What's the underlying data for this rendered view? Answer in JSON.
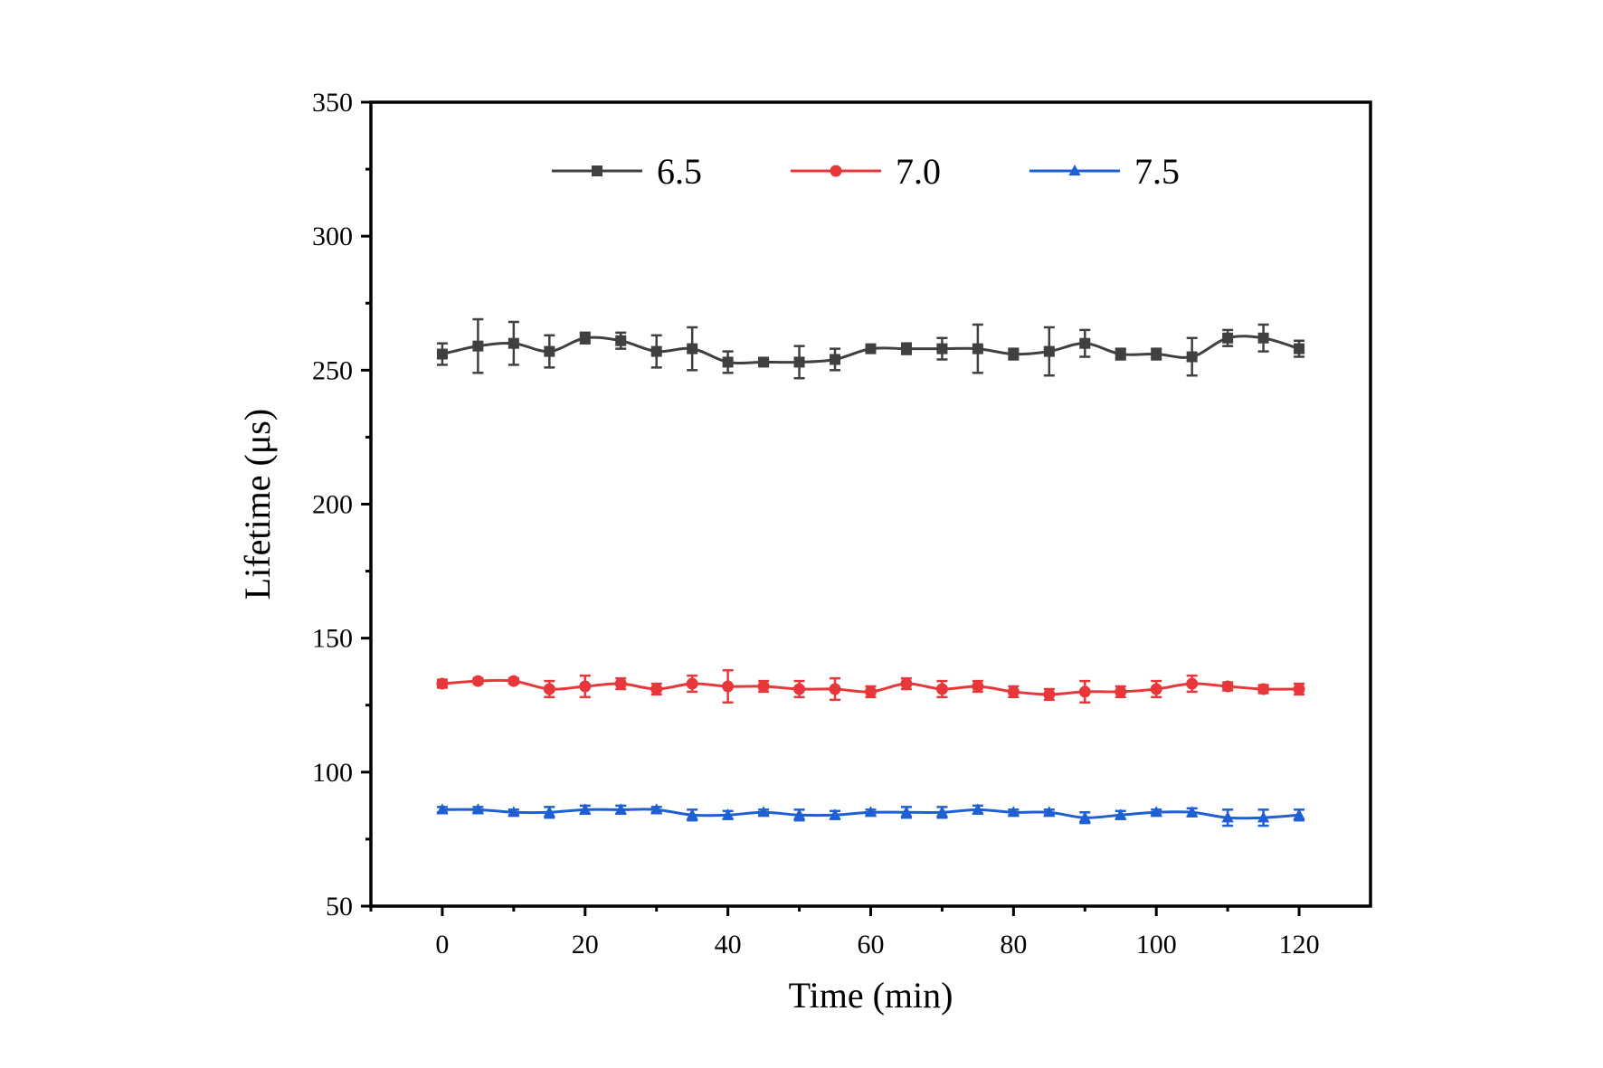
{
  "chart_data": {
    "type": "line",
    "xlabel": "Time (min)",
    "ylabel": "Lifetime (μs)",
    "xlim": [
      -10,
      130
    ],
    "ylim": [
      50,
      350
    ],
    "xticks": [
      0,
      20,
      40,
      60,
      80,
      100,
      120
    ],
    "yticks": [
      50,
      100,
      150,
      200,
      250,
      300,
      350
    ],
    "grid": false,
    "legend_position": "top",
    "x": [
      0,
      5,
      10,
      15,
      20,
      25,
      30,
      35,
      40,
      45,
      50,
      55,
      60,
      65,
      70,
      75,
      80,
      85,
      90,
      95,
      100,
      105,
      110,
      115,
      120
    ],
    "series": [
      {
        "name": "6.5",
        "color": "#404040",
        "marker": "square",
        "values": [
          256,
          259,
          260,
          257,
          262,
          261,
          257,
          258,
          253,
          253,
          253,
          254,
          258,
          258,
          258,
          258,
          256,
          257,
          260,
          256,
          256,
          255,
          262,
          262,
          258
        ],
        "errors": [
          4,
          10,
          8,
          6,
          2,
          3,
          6,
          8,
          4,
          1,
          6,
          4,
          1,
          2,
          4,
          9,
          2,
          9,
          5,
          2,
          2,
          7,
          3,
          5,
          3
        ]
      },
      {
        "name": "7.0",
        "color": "#e8373a",
        "marker": "circle",
        "values": [
          133,
          134,
          134,
          131,
          132,
          133,
          131,
          133,
          132,
          132,
          131,
          131,
          130,
          133,
          131,
          132,
          130,
          129,
          130,
          130,
          131,
          133,
          132,
          131,
          131
        ],
        "errors": [
          1.5,
          1,
          1,
          3,
          4,
          2,
          2,
          3,
          6,
          2,
          3,
          4,
          2,
          2,
          3,
          2,
          2,
          2,
          4,
          2,
          3,
          3,
          1.5,
          1.5,
          2
        ]
      },
      {
        "name": "7.5",
        "color": "#1e5fd4",
        "marker": "triangle",
        "values": [
          86,
          86,
          85,
          85,
          86,
          86,
          86,
          84,
          84,
          85,
          84,
          84,
          85,
          85,
          85,
          86,
          85,
          85,
          83,
          84,
          85,
          85,
          83,
          83,
          84
        ],
        "errors": [
          1,
          1,
          1,
          2,
          1.5,
          1.5,
          1,
          2,
          1.5,
          1,
          2,
          1.5,
          1,
          2,
          2,
          1.5,
          1,
          1,
          2,
          1.5,
          1,
          1.5,
          3,
          3,
          2
        ]
      }
    ]
  }
}
